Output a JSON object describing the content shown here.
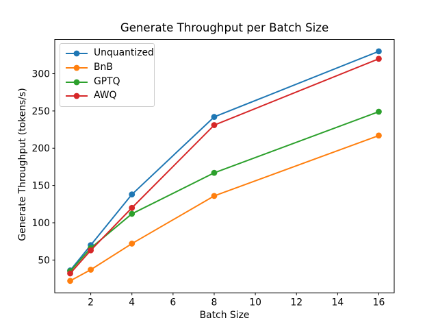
{
  "chart_data": {
    "type": "line",
    "title": "Generate Throughput per Batch Size",
    "xlabel": "Batch Size",
    "ylabel": "Generate Throughput (tokens/s)",
    "x": [
      1,
      2,
      4,
      8,
      16
    ],
    "series": [
      {
        "name": "Unquantized",
        "color": "#1f77b4",
        "values": [
          36,
          70,
          138,
          242,
          330
        ]
      },
      {
        "name": "BnB",
        "color": "#ff7f0e",
        "values": [
          22,
          37,
          72,
          136,
          217
        ]
      },
      {
        "name": "GPTQ",
        "color": "#2ca02c",
        "values": [
          35,
          66,
          112,
          167,
          249
        ]
      },
      {
        "name": "AWQ",
        "color": "#d62728",
        "values": [
          32,
          63,
          120,
          231,
          320
        ]
      }
    ],
    "xticks": [
      2,
      4,
      6,
      8,
      10,
      12,
      14,
      16
    ],
    "yticks": [
      50,
      100,
      150,
      200,
      250,
      300
    ],
    "xlim": [
      0.25,
      16.75
    ],
    "ylim": [
      6,
      346
    ],
    "grid": false,
    "legend_position": "upper left",
    "marker": "o",
    "line_width": 2,
    "marker_radius": 4.4,
    "axis_color": "#000000",
    "legend_border_color": "#cccccc",
    "background": "#ffffff"
  }
}
